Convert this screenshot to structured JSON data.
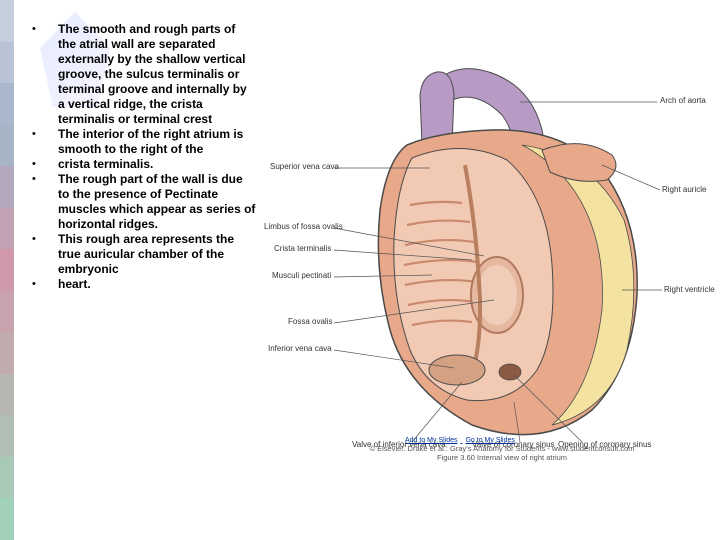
{
  "strip_colors": [
    "#c5cedd",
    "#b8c3d5",
    "#aab8cd",
    "#a7b4c5",
    "#b4a9bc",
    "#c1a1b3",
    "#cf99aa",
    "#c8a2ad",
    "#c0acaf",
    "#b8b6b2",
    "#b0bfb4",
    "#a9c9b7",
    "#a1d2b9"
  ],
  "bullets": [
    "The smooth and rough parts of the atrial wall are separated externally by the shallow vertical groove, the sulcus terminalis or terminal groove  and internally by a vertical ridge, the crista terminalis or terminal crest",
    "The interior of the right atrium is smooth to the right of the",
    "crista terminalis.",
    "The rough part of the wall is due to the presence of Pectinate muscles which appear as   series of horizontal ridges.",
    "This rough area represents the true auricular chamber of the embryonic",
    "heart."
  ],
  "labels": {
    "arch_aorta": "Arch of aorta",
    "svc": "Superior vena cava",
    "limbus": "Limbus of fossa ovalis",
    "crista": "Crista terminalis",
    "pectinati": "Musculi pectinati",
    "fossa": "Fossa ovalis",
    "ivc": "Inferior vena cava",
    "valve_ivc": "Valve of inferior vena cava",
    "coronary": "Opening of coronary sinus",
    "valve_coronary": "Valve of coronary sinus",
    "right_auricle": "Right auricle",
    "right_ventricle": "Right ventricle"
  },
  "caption": "© Elsevier. Drake et al.: Gray's Anatomy for Students - www.studentconsult.com",
  "figure_caption": "Figure 3.60 Internal view of right atrium",
  "link1": "Add to My Slides",
  "link2": "Go to My Slides",
  "heart": {
    "outer_fill": "#e8a88a",
    "inner_fill": "#f2c9b3",
    "vessel_fill": "#b89bc4",
    "fat_fill": "#f4e3a0",
    "line_color": "#4a4a4a"
  }
}
